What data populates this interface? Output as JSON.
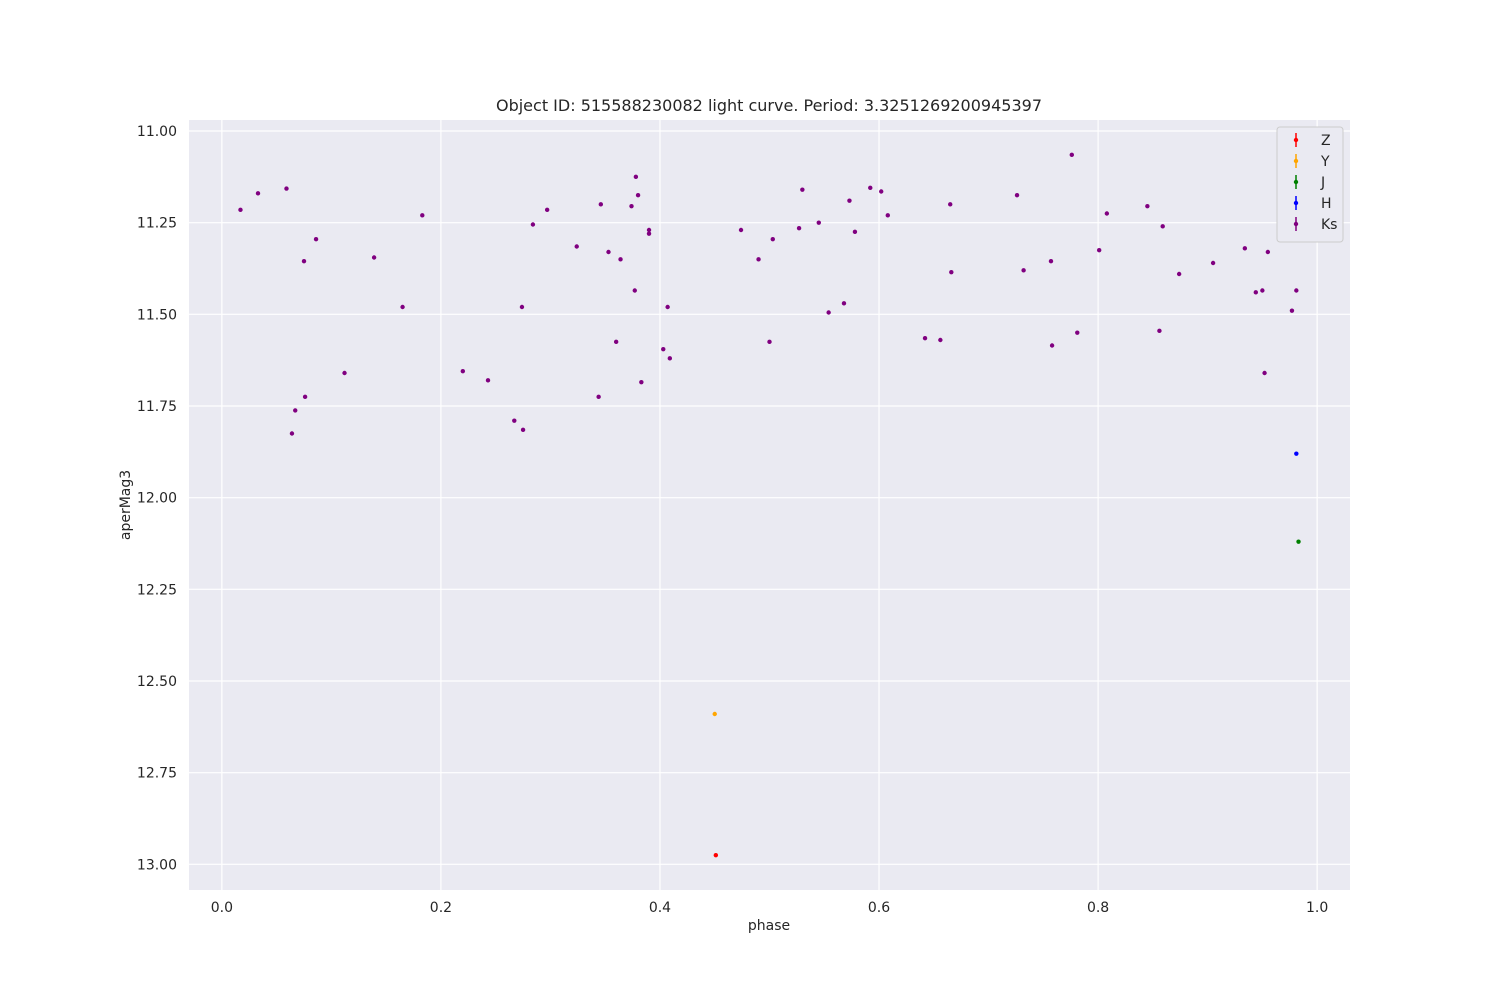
{
  "chart_data": {
    "type": "scatter",
    "title": "Object ID: 515588230082 light curve. Period: 3.3251269200945397",
    "xlabel": "phase",
    "ylabel": "aperMag3",
    "xlim": [
      -0.03,
      1.03
    ],
    "ylim": [
      13.07,
      10.97
    ],
    "y_inverted": true,
    "xticks": [
      0.0,
      0.2,
      0.4,
      0.6,
      0.8,
      1.0
    ],
    "xtick_labels": [
      "0.0",
      "0.2",
      "0.4",
      "0.6",
      "0.8",
      "1.0"
    ],
    "yticks": [
      11.0,
      11.25,
      11.5,
      11.75,
      12.0,
      12.25,
      12.5,
      12.75,
      13.0
    ],
    "ytick_labels": [
      "11.00",
      "11.25",
      "11.50",
      "11.75",
      "12.00",
      "12.25",
      "12.50",
      "12.75",
      "13.00"
    ],
    "grid": true,
    "legend_position": "top-right",
    "series": [
      {
        "name": "Z",
        "color": "#ff0000",
        "points": [
          [
            0.451,
            12.975
          ]
        ]
      },
      {
        "name": "Y",
        "color": "#ffa500",
        "points": [
          [
            0.45,
            12.59
          ]
        ]
      },
      {
        "name": "J",
        "color": "#008000",
        "points": [
          [
            0.983,
            12.12
          ]
        ]
      },
      {
        "name": "H",
        "color": "#0000ff",
        "points": [
          [
            0.981,
            11.88
          ]
        ]
      },
      {
        "name": "Ks",
        "color": "#800080",
        "points": [
          [
            0.017,
            11.215
          ],
          [
            0.033,
            11.17
          ],
          [
            0.059,
            11.157
          ],
          [
            0.064,
            11.825
          ],
          [
            0.067,
            11.762
          ],
          [
            0.075,
            11.355
          ],
          [
            0.076,
            11.725
          ],
          [
            0.086,
            11.295
          ],
          [
            0.112,
            11.66
          ],
          [
            0.139,
            11.345
          ],
          [
            0.165,
            11.48
          ],
          [
            0.183,
            11.23
          ],
          [
            0.22,
            11.655
          ],
          [
            0.243,
            11.68
          ],
          [
            0.267,
            11.79
          ],
          [
            0.274,
            11.48
          ],
          [
            0.275,
            11.815
          ],
          [
            0.284,
            11.255
          ],
          [
            0.297,
            11.215
          ],
          [
            0.324,
            11.315
          ],
          [
            0.344,
            11.725
          ],
          [
            0.346,
            11.2
          ],
          [
            0.353,
            11.33
          ],
          [
            0.36,
            11.575
          ],
          [
            0.364,
            11.35
          ],
          [
            0.374,
            11.205
          ],
          [
            0.377,
            11.435
          ],
          [
            0.378,
            11.125
          ],
          [
            0.38,
            11.175
          ],
          [
            0.383,
            11.685
          ],
          [
            0.39,
            11.27
          ],
          [
            0.39,
            11.28
          ],
          [
            0.403,
            11.595
          ],
          [
            0.407,
            11.48
          ],
          [
            0.409,
            11.62
          ],
          [
            0.474,
            11.27
          ],
          [
            0.49,
            11.35
          ],
          [
            0.5,
            11.575
          ],
          [
            0.503,
            11.295
          ],
          [
            0.527,
            11.265
          ],
          [
            0.53,
            11.16
          ],
          [
            0.545,
            11.25
          ],
          [
            0.554,
            11.495
          ],
          [
            0.568,
            11.47
          ],
          [
            0.573,
            11.19
          ],
          [
            0.578,
            11.275
          ],
          [
            0.592,
            11.155
          ],
          [
            0.602,
            11.165
          ],
          [
            0.608,
            11.23
          ],
          [
            0.642,
            11.565
          ],
          [
            0.656,
            11.57
          ],
          [
            0.665,
            11.2
          ],
          [
            0.666,
            11.385
          ],
          [
            0.726,
            11.175
          ],
          [
            0.732,
            11.38
          ],
          [
            0.757,
            11.355
          ],
          [
            0.758,
            11.585
          ],
          [
            0.776,
            11.065
          ],
          [
            0.781,
            11.55
          ],
          [
            0.801,
            11.325
          ],
          [
            0.808,
            11.225
          ],
          [
            0.845,
            11.205
          ],
          [
            0.856,
            11.545
          ],
          [
            0.859,
            11.26
          ],
          [
            0.874,
            11.39
          ],
          [
            0.905,
            11.36
          ],
          [
            0.934,
            11.32
          ],
          [
            0.944,
            11.44
          ],
          [
            0.95,
            11.435
          ],
          [
            0.952,
            11.66
          ],
          [
            0.955,
            11.33
          ],
          [
            0.977,
            11.49
          ],
          [
            0.981,
            11.435
          ]
        ]
      }
    ]
  }
}
